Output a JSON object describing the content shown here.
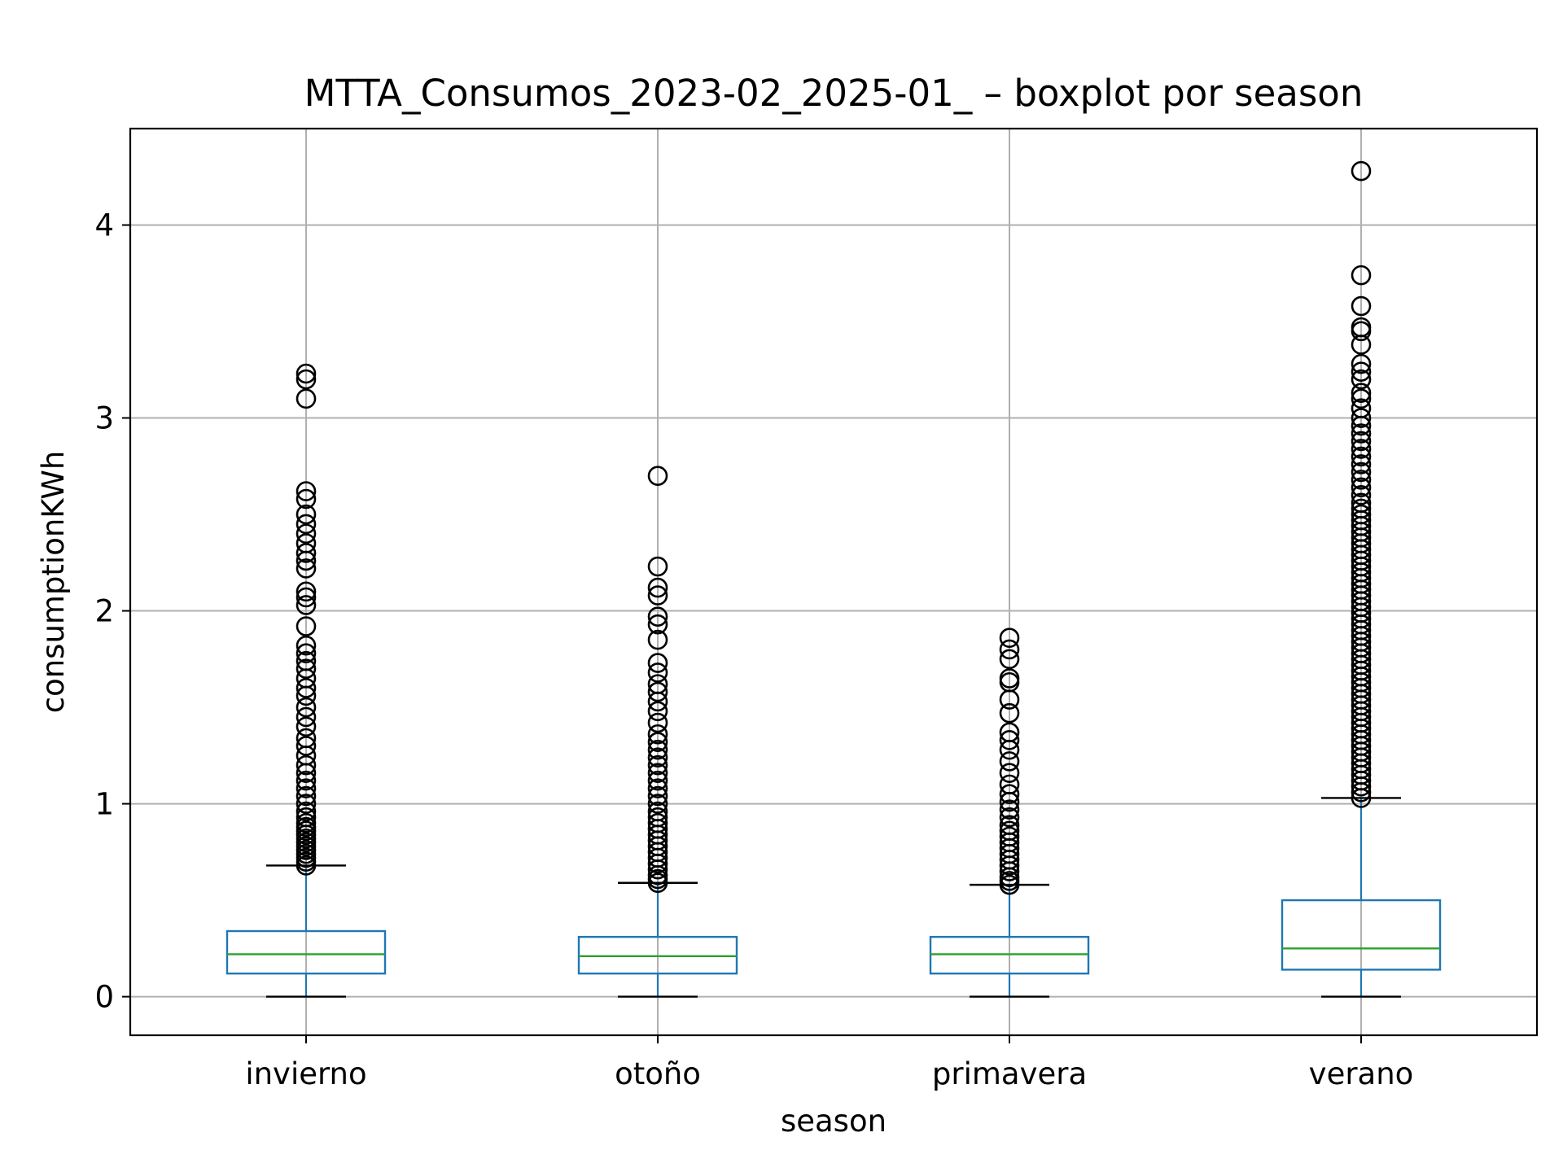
{
  "chart_data": {
    "type": "box",
    "title": "MTTA_Consumos_2023-02_2025-01_ – boxplot por season",
    "xlabel": "season",
    "ylabel": "consumptionKWh",
    "ylim": [
      -0.2,
      4.5
    ],
    "yticks": [
      0,
      1,
      2,
      3,
      4
    ],
    "grid": true,
    "categories": [
      "invierno",
      "otoño",
      "primavera",
      "verano"
    ],
    "boxes": [
      {
        "category": "invierno",
        "whisker_low": 0.0,
        "q1": 0.12,
        "median": 0.22,
        "q3": 0.34,
        "whisker_high": 0.68,
        "outliers": [
          0.68,
          0.7,
          0.72,
          0.74,
          0.76,
          0.78,
          0.8,
          0.82,
          0.84,
          0.86,
          0.88,
          0.9,
          0.93,
          0.96,
          1.0,
          1.04,
          1.08,
          1.12,
          1.16,
          1.2,
          1.25,
          1.3,
          1.34,
          1.4,
          1.45,
          1.5,
          1.56,
          1.6,
          1.65,
          1.7,
          1.74,
          1.78,
          1.82,
          1.92,
          2.03,
          2.07,
          2.1,
          2.22,
          2.26,
          2.3,
          2.35,
          2.4,
          2.45,
          2.5,
          2.58,
          2.62,
          3.1,
          3.2,
          3.23
        ]
      },
      {
        "category": "otoño",
        "whisker_low": 0.0,
        "q1": 0.12,
        "median": 0.21,
        "q3": 0.31,
        "whisker_high": 0.59,
        "outliers": [
          0.59,
          0.61,
          0.63,
          0.66,
          0.69,
          0.72,
          0.75,
          0.78,
          0.81,
          0.84,
          0.87,
          0.9,
          0.93,
          0.96,
          1.0,
          1.04,
          1.08,
          1.12,
          1.16,
          1.2,
          1.24,
          1.28,
          1.32,
          1.36,
          1.42,
          1.48,
          1.53,
          1.58,
          1.62,
          1.68,
          1.73,
          1.85,
          1.93,
          1.97,
          2.08,
          2.12,
          2.23,
          2.7
        ]
      },
      {
        "category": "primavera",
        "whisker_low": 0.0,
        "q1": 0.12,
        "median": 0.22,
        "q3": 0.31,
        "whisker_high": 0.58,
        "outliers": [
          0.58,
          0.6,
          0.62,
          0.65,
          0.68,
          0.71,
          0.74,
          0.77,
          0.8,
          0.83,
          0.86,
          0.89,
          0.93,
          0.97,
          1.01,
          1.05,
          1.1,
          1.16,
          1.22,
          1.28,
          1.33,
          1.37,
          1.47,
          1.54,
          1.63,
          1.65,
          1.75,
          1.8,
          1.86
        ]
      },
      {
        "category": "verano",
        "whisker_low": 0.0,
        "q1": 0.14,
        "median": 0.25,
        "q3": 0.5,
        "whisker_high": 1.03,
        "outliers": [
          1.03,
          1.06,
          1.09,
          1.12,
          1.15,
          1.18,
          1.21,
          1.24,
          1.27,
          1.3,
          1.33,
          1.36,
          1.39,
          1.42,
          1.45,
          1.48,
          1.51,
          1.54,
          1.57,
          1.6,
          1.63,
          1.66,
          1.69,
          1.72,
          1.75,
          1.78,
          1.81,
          1.84,
          1.87,
          1.9,
          1.93,
          1.96,
          1.99,
          2.02,
          2.05,
          2.08,
          2.11,
          2.14,
          2.17,
          2.2,
          2.23,
          2.26,
          2.29,
          2.32,
          2.35,
          2.38,
          2.41,
          2.44,
          2.47,
          2.5,
          2.53,
          2.56,
          2.6,
          2.64,
          2.68,
          2.72,
          2.76,
          2.8,
          2.84,
          2.88,
          2.92,
          2.96,
          3.0,
          3.05,
          3.1,
          3.13,
          3.2,
          3.24,
          3.28,
          3.38,
          3.45,
          3.47,
          3.58,
          3.74,
          4.28
        ]
      }
    ],
    "colors": {
      "box": "#1f77b4",
      "median": "#2ca02c",
      "whisker_cap": "#000000",
      "outlier_edge": "#000000",
      "grid": "#b0b0b0"
    }
  }
}
